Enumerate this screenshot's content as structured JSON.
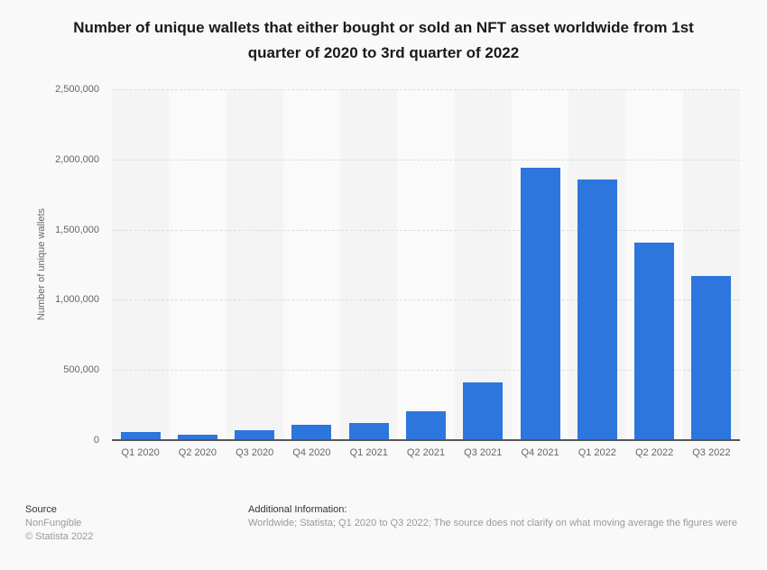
{
  "title": "Number of unique wallets that either bought or sold an NFT asset worldwide from 1st quarter of 2020 to 3rd quarter of 2022",
  "chart_data": {
    "type": "bar",
    "title": "Number of unique wallets that either bought or sold an NFT asset worldwide from 1st quarter of 2020 to 3rd quarter of 2022",
    "categories": [
      "Q1 2020",
      "Q2 2020",
      "Q3 2020",
      "Q4 2020",
      "Q1 2021",
      "Q2 2021",
      "Q3 2021",
      "Q4 2021",
      "Q1 2022",
      "Q2 2022",
      "Q3 2022"
    ],
    "values": [
      55000,
      40000,
      68000,
      110000,
      125000,
      205000,
      410000,
      1940000,
      1860000,
      1410000,
      1170000
    ],
    "xlabel": "",
    "ylabel": "Number of unique wallets",
    "ylim": [
      0,
      2500000
    ],
    "ytick_labels_top_to_bottom": [
      "2,500,000",
      "2,000,000",
      "1,500,000",
      "1,000,000",
      "500,000",
      "0"
    ],
    "grid": "horizontal-dashed",
    "legend": "none",
    "bar_color": "#2d76de",
    "band_color_odd": "#f4f4f5",
    "band_color_even": "#fafafa",
    "gridline_color": "#dcdcdc",
    "axis_line_color": "#55565a"
  },
  "footer": {
    "source_label": "Source",
    "source_name": "NonFungible",
    "copyright": "© Statista 2022",
    "additional_info_label": "Additional Information:",
    "additional_info_text": "Worldwide; Statista; Q1 2020 to Q3 2022; The source does not clarify on what moving average the figures were"
  }
}
